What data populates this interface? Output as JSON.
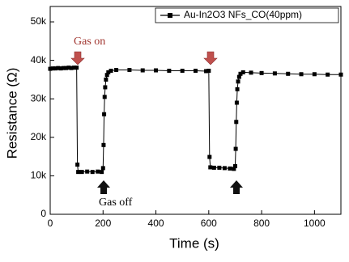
{
  "chart_data": {
    "type": "line",
    "x_label": "Time (s)",
    "y_label": "Resistance (Ω)",
    "annotations": [
      "Gas on",
      "Gas off"
    ],
    "xlim": [
      0,
      1100
    ],
    "xticks": [
      0,
      200,
      400,
      600,
      800,
      1000
    ],
    "ylim": [
      0,
      54000
    ],
    "yticks": [
      0,
      {
        "value": 10000,
        "label": "10k"
      },
      {
        "value": 20000,
        "label": "20k"
      },
      {
        "value": 30000,
        "label": "30k"
      },
      {
        "value": 40000,
        "label": "40k"
      },
      {
        "value": 50000,
        "label": "50k"
      }
    ],
    "legend": "top-right",
    "x": [
      0,
      10,
      20,
      30,
      40,
      50,
      60,
      70,
      80,
      90,
      100,
      103,
      106,
      120,
      140,
      160,
      180,
      195,
      200,
      202,
      204,
      206,
      208,
      211,
      215,
      220,
      230,
      250,
      300,
      350,
      400,
      450,
      500,
      550,
      590,
      600,
      603,
      606,
      620,
      640,
      660,
      680,
      695,
      700,
      702,
      704,
      706,
      708,
      711,
      715,
      720,
      730,
      760,
      800,
      850,
      900,
      950,
      1000,
      1050,
      1100
    ],
    "series": [
      {
        "name": "Au-In2O3 NFs_CO(40ppm)",
        "color": "#000000",
        "values": [
          37800,
          37900,
          37900,
          38000,
          37900,
          38000,
          38000,
          38100,
          38000,
          38100,
          38100,
          12900,
          11000,
          11000,
          11100,
          11000,
          11100,
          11000,
          12000,
          18000,
          26000,
          30500,
          33000,
          35000,
          36200,
          36900,
          37300,
          37500,
          37500,
          37400,
          37400,
          37300,
          37300,
          37300,
          37200,
          37300,
          14900,
          12200,
          12100,
          12100,
          12000,
          11900,
          11800,
          12500,
          17000,
          24000,
          29000,
          32500,
          34500,
          35700,
          36500,
          36900,
          36800,
          36700,
          36600,
          36500,
          36400,
          36400,
          36300,
          36300
        ]
      }
    ]
  }
}
